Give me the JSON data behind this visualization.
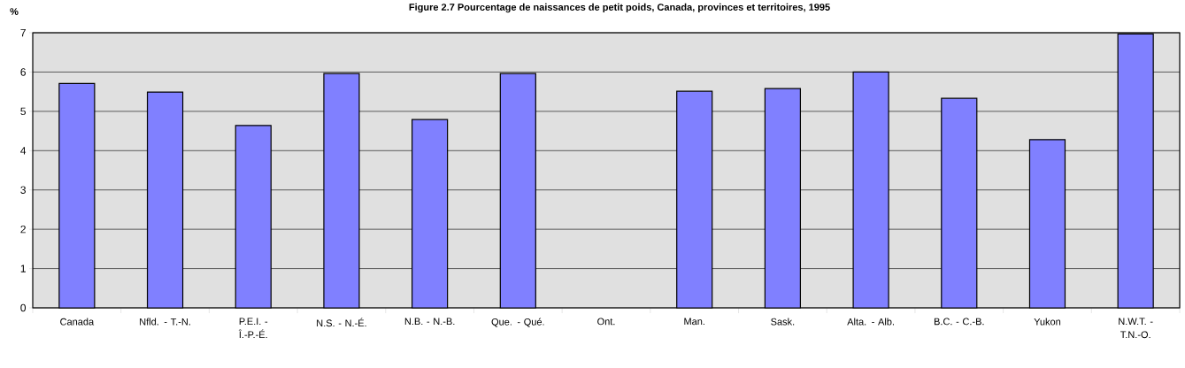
{
  "chart_data": {
    "type": "bar",
    "title": "Figure 2.7  Pourcentage de naissances de petit poids, Canada, provinces et territoires, 1995",
    "ylabel": "%",
    "categories": [
      "Canada",
      "Nfld. - T.-N.",
      "P.E.I. - Î.-P.-É.",
      "N.S. - N.-É.",
      "N.B. - N.-B.",
      "Que. - Qué.",
      "Ont.",
      "Man.",
      "Sask.",
      "Alta. - Alb.",
      "B.C. - C.-B.",
      "Yukon",
      "N.W.T. - T.N.-O."
    ],
    "values": [
      5.71,
      5.49,
      4.64,
      5.96,
      4.79,
      5.96,
      null,
      5.51,
      5.58,
      6.0,
      5.33,
      4.28,
      6.97
    ],
    "color": "#8080ff",
    "ylim": [
      0,
      7
    ],
    "yticks": [
      0,
      1,
      2,
      3,
      4,
      5,
      6,
      7
    ],
    "grid": "y"
  }
}
